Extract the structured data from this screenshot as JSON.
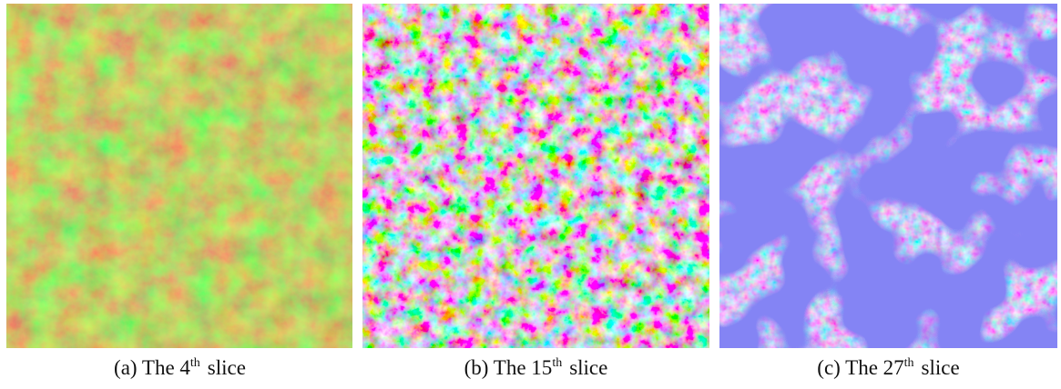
{
  "panels": [
    {
      "caption": {
        "before": "(a) The 4",
        "sup": "th",
        "after": "slice"
      }
    },
    {
      "caption": {
        "before": "(b) The 15",
        "sup": "th",
        "after": "slice"
      }
    },
    {
      "caption": {
        "before": "(c) The 27",
        "sup": "th",
        "after": "slice"
      }
    }
  ]
}
